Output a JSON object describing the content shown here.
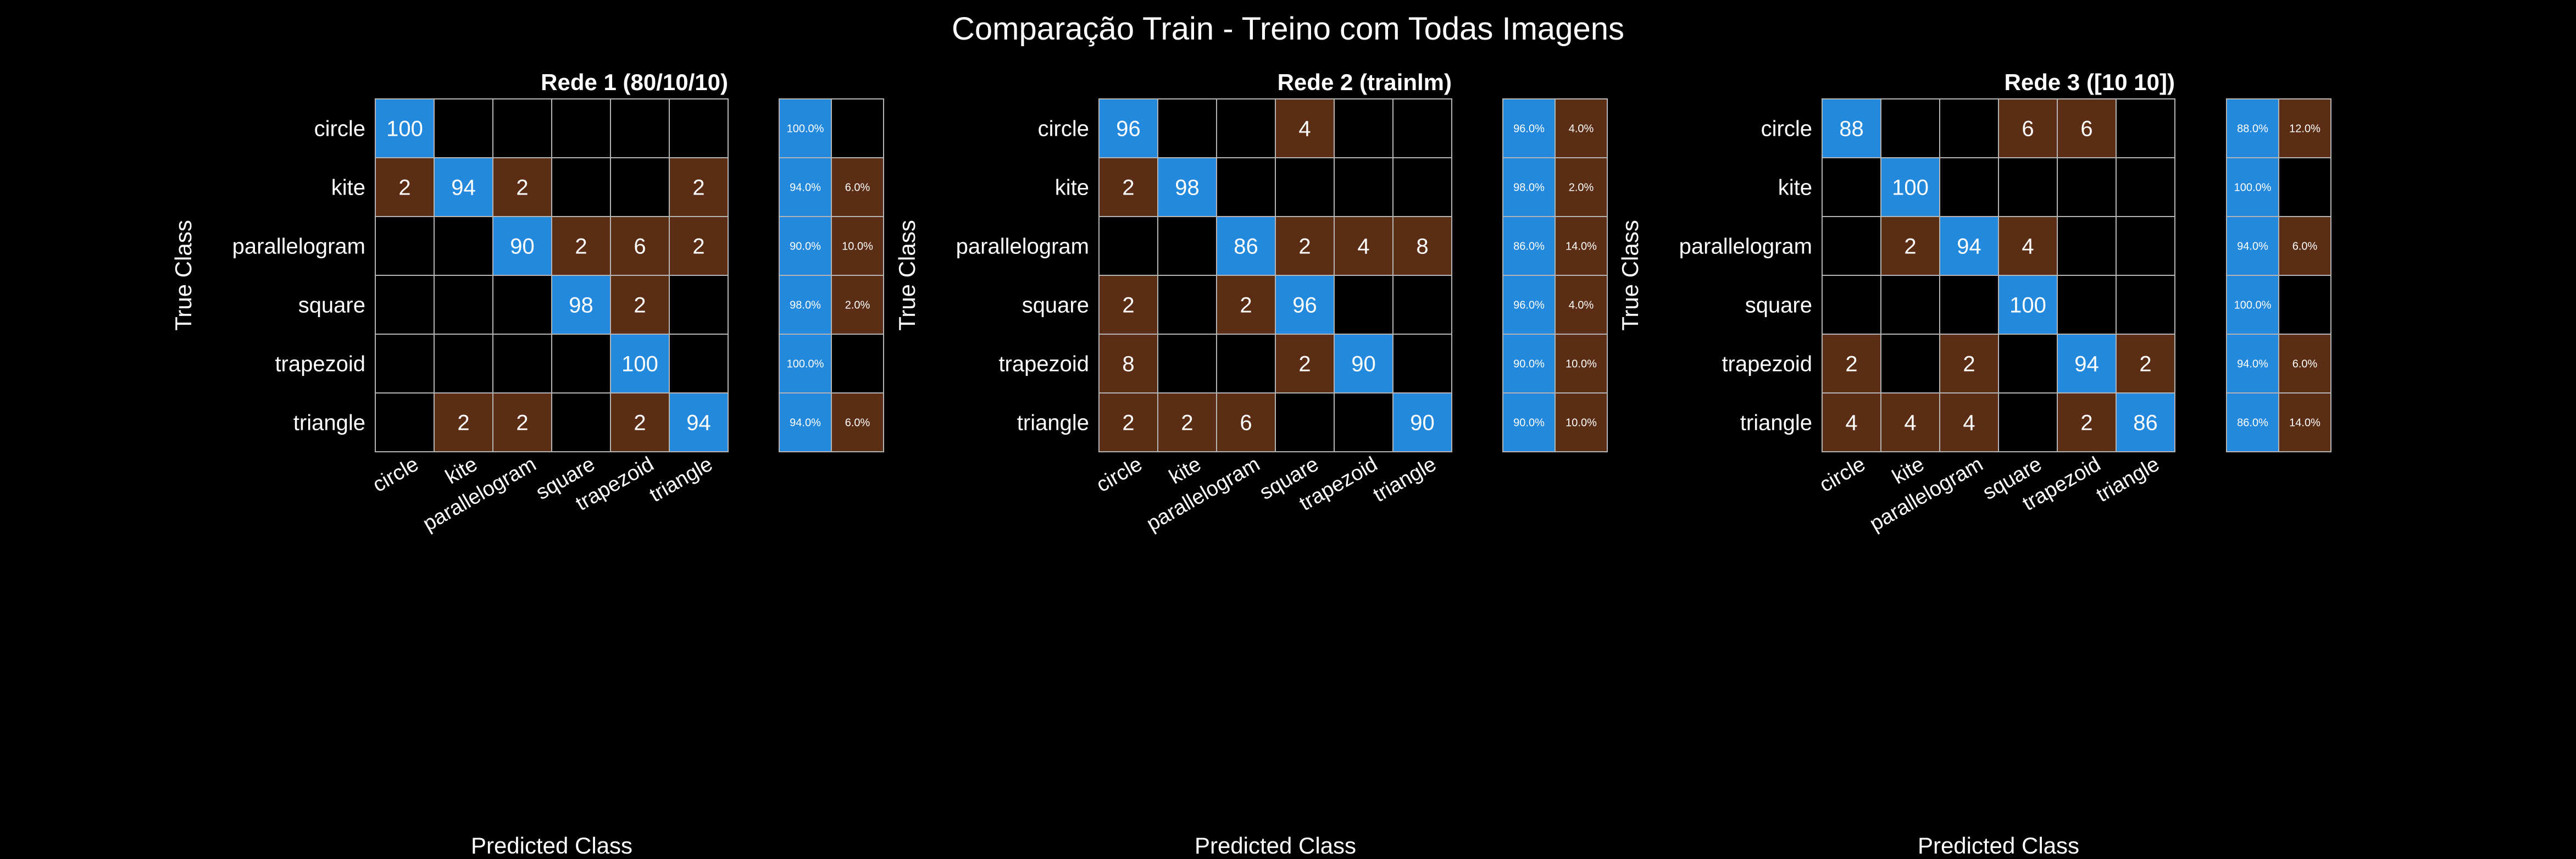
{
  "figure": {
    "title": "Comparação Train - Treino com Todas Imagens",
    "background": "#000000",
    "text_color": "#ffffff",
    "grid_color": "#b4b4b4",
    "correct_color": "#2389dc",
    "incorrect_color": "#5a2d14"
  },
  "chart_data": [
    {
      "type": "heatmap",
      "title": "Rede 1 (80/10/10)",
      "xlabel": "Predicted Class",
      "ylabel": "True Class",
      "classes": [
        "circle",
        "kite",
        "parallelogram",
        "square",
        "trapezoid",
        "triangle"
      ],
      "matrix": [
        [
          100,
          0,
          0,
          0,
          0,
          0
        ],
        [
          2,
          94,
          2,
          0,
          0,
          2
        ],
        [
          0,
          0,
          90,
          2,
          6,
          2
        ],
        [
          0,
          0,
          0,
          98,
          2,
          0
        ],
        [
          0,
          0,
          0,
          0,
          100,
          0
        ],
        [
          0,
          2,
          2,
          0,
          2,
          94
        ]
      ],
      "row_summary": [
        [
          "100.0%",
          ""
        ],
        [
          "94.0%",
          "6.0%"
        ],
        [
          "90.0%",
          "10.0%"
        ],
        [
          "98.0%",
          "2.0%"
        ],
        [
          "100.0%",
          ""
        ],
        [
          "94.0%",
          "6.0%"
        ]
      ]
    },
    {
      "type": "heatmap",
      "title": "Rede 2 (trainlm)",
      "xlabel": "Predicted Class",
      "ylabel": "True Class",
      "classes": [
        "circle",
        "kite",
        "parallelogram",
        "square",
        "trapezoid",
        "triangle"
      ],
      "matrix": [
        [
          96,
          0,
          0,
          4,
          0,
          0
        ],
        [
          2,
          98,
          0,
          0,
          0,
          0
        ],
        [
          0,
          0,
          86,
          2,
          4,
          8
        ],
        [
          2,
          0,
          2,
          96,
          0,
          0
        ],
        [
          8,
          0,
          0,
          2,
          90,
          0
        ],
        [
          2,
          2,
          6,
          0,
          0,
          90
        ]
      ],
      "row_summary": [
        [
          "96.0%",
          "4.0%"
        ],
        [
          "98.0%",
          "2.0%"
        ],
        [
          "86.0%",
          "14.0%"
        ],
        [
          "96.0%",
          "4.0%"
        ],
        [
          "90.0%",
          "10.0%"
        ],
        [
          "90.0%",
          "10.0%"
        ]
      ]
    },
    {
      "type": "heatmap",
      "title": "Rede 3 ([10 10])",
      "xlabel": "Predicted Class",
      "ylabel": "True Class",
      "classes": [
        "circle",
        "kite",
        "parallelogram",
        "square",
        "trapezoid",
        "triangle"
      ],
      "matrix": [
        [
          88,
          0,
          0,
          6,
          6,
          0
        ],
        [
          0,
          100,
          0,
          0,
          0,
          0
        ],
        [
          0,
          2,
          94,
          4,
          0,
          0
        ],
        [
          0,
          0,
          0,
          100,
          0,
          0
        ],
        [
          2,
          0,
          2,
          0,
          94,
          2
        ],
        [
          4,
          4,
          4,
          0,
          2,
          86
        ]
      ],
      "row_summary": [
        [
          "88.0%",
          "12.0%"
        ],
        [
          "100.0%",
          ""
        ],
        [
          "94.0%",
          "6.0%"
        ],
        [
          "100.0%",
          ""
        ],
        [
          "94.0%",
          "6.0%"
        ],
        [
          "86.0%",
          "14.0%"
        ]
      ]
    }
  ]
}
